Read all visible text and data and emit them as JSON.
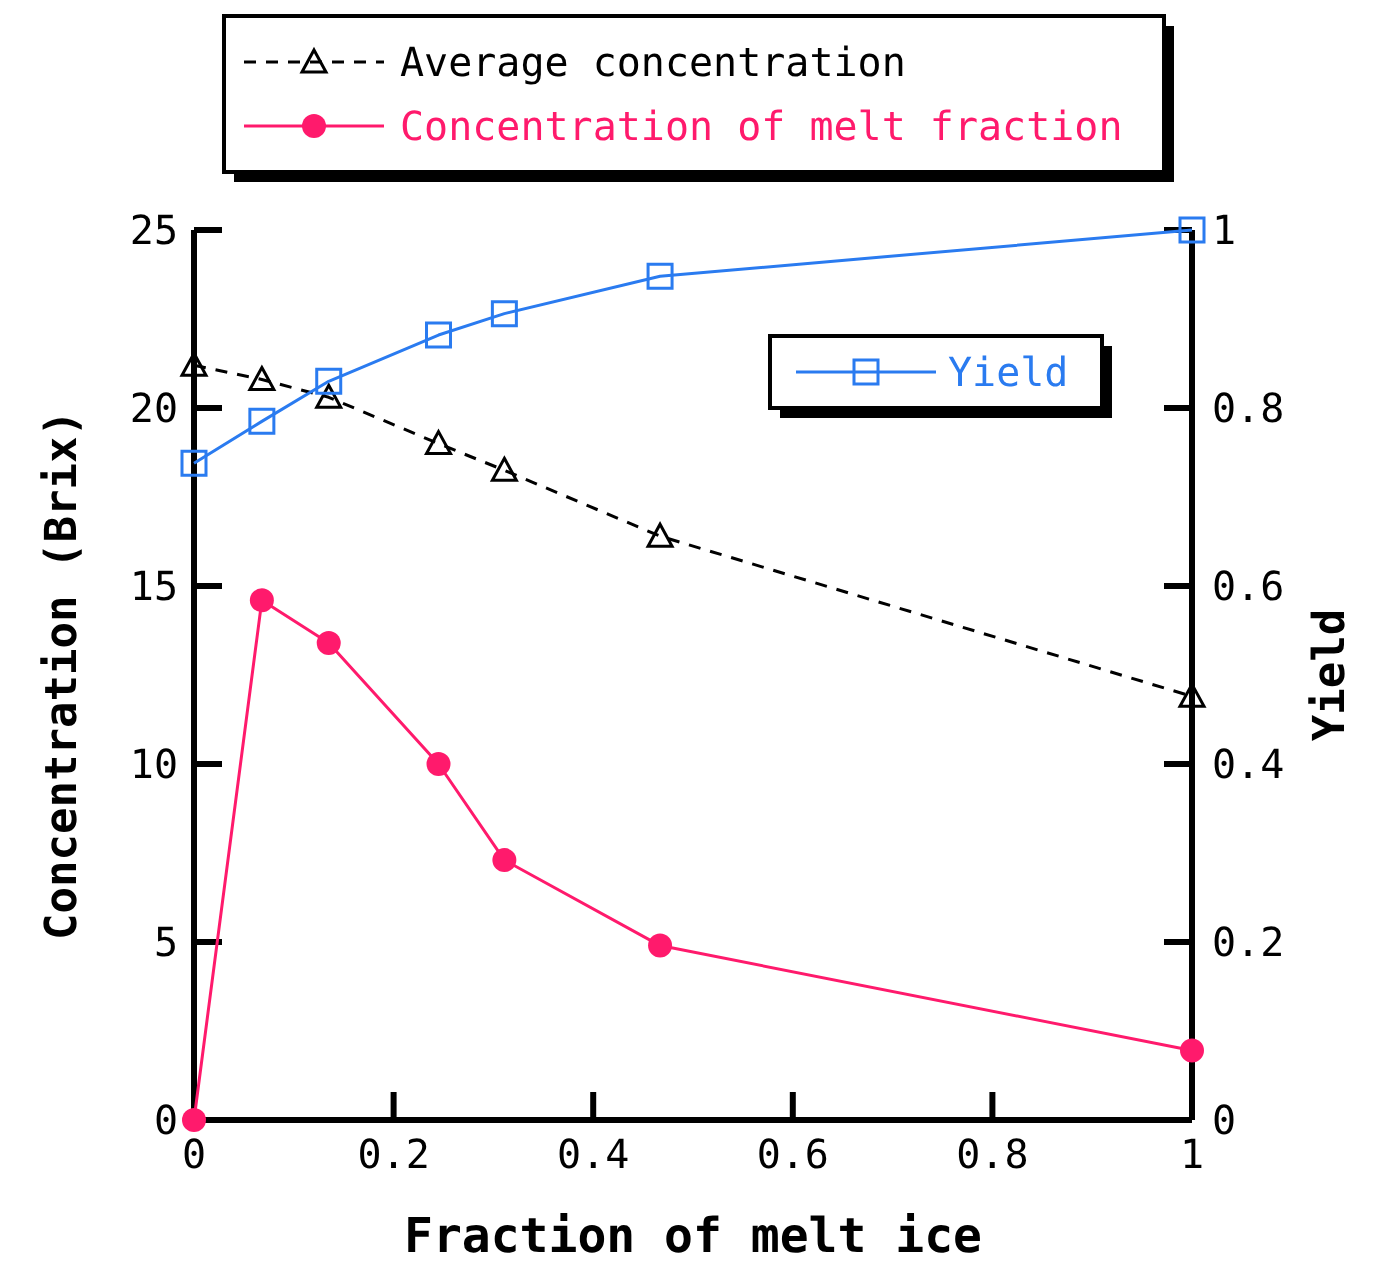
{
  "chart_data": {
    "type": "line",
    "xlabel": "Fraction of melt ice",
    "ylabel": "Concentration (Brix)",
    "y2label": "Yield",
    "xlim": [
      0,
      1
    ],
    "xticks": [
      0,
      0.2,
      0.4,
      0.6,
      0.8,
      1
    ],
    "ylim": [
      0,
      25
    ],
    "yticks": [
      0,
      5,
      10,
      15,
      20,
      25
    ],
    "y2lim": [
      0,
      1
    ],
    "y2ticks": [
      0,
      0.2,
      0.4,
      0.6,
      0.8,
      1
    ],
    "grid": false,
    "legend": "top",
    "series": [
      {
        "name": "Average concentration",
        "color": "#000000",
        "marker": "triangle",
        "line_style": "dashed",
        "x": [
          0,
          0.068,
          0.135,
          0.245,
          0.311,
          0.467,
          1
        ],
        "values": [
          21.2,
          20.8,
          20.3,
          19.0,
          18.25,
          16.4,
          11.9
        ]
      },
      {
        "name": "Concentration of melt fraction",
        "color": "#ff1a6c",
        "marker": "circle",
        "line_style": "solid",
        "x": [
          0,
          0.068,
          0.135,
          0.245,
          0.311,
          0.467,
          1
        ],
        "values": [
          0,
          14.6,
          13.4,
          10.0,
          7.3,
          4.9,
          1.95
        ]
      },
      {
        "name": "Yield",
        "color": "#2a7bf0",
        "marker": "square",
        "line_style": "solid",
        "axis": "y2",
        "x": [
          0,
          0.068,
          0.135,
          0.245,
          0.311,
          0.467,
          1
        ],
        "values": [
          0.738,
          0.785,
          0.83,
          0.882,
          0.906,
          0.948,
          1.0
        ]
      }
    ]
  }
}
